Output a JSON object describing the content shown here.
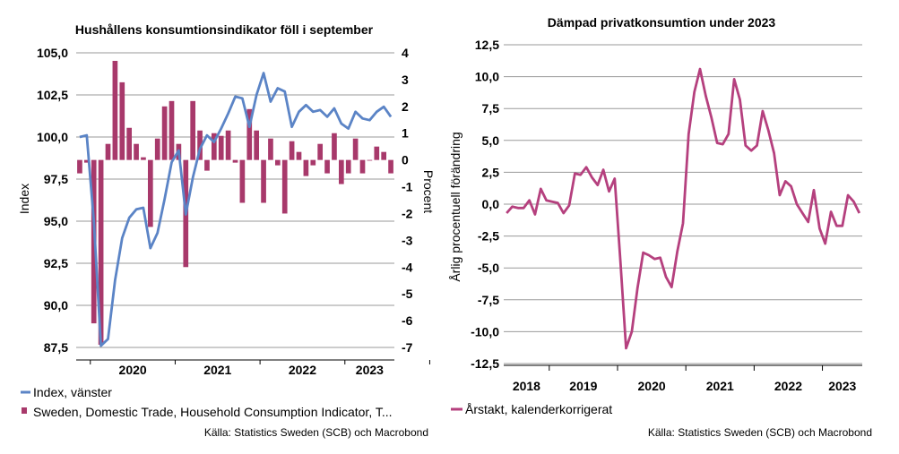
{
  "chart_data": [
    {
      "type": "bar+line",
      "title": "Hushållens konsumtionsindikator föll i september",
      "ylabel_left": "Index",
      "ylabel_right": "Procent",
      "left_ylim": [
        87.5,
        105.0
      ],
      "left_ticks": [
        "105,0",
        "102,5",
        "100,0",
        "97,5",
        "95,0",
        "92,5",
        "90,0",
        "87,5"
      ],
      "right_ylim": [
        -7,
        4
      ],
      "right_ticks": [
        "4",
        "3",
        "2",
        "1",
        "0",
        "-1",
        "-2",
        "-3",
        "-4",
        "-5",
        "-6",
        "-7"
      ],
      "x_ticks": [
        "2020",
        "2021",
        "2022",
        "2023"
      ],
      "grid": true,
      "legend_position": "bottom",
      "colors": {
        "line": "#5b84c6",
        "bars": "#a8396b"
      },
      "series": [
        {
          "name": "Index, vänster",
          "kind": "line",
          "axis": "left",
          "values": [
            100.0,
            100.1,
            95.0,
            87.6,
            88.0,
            91.5,
            94.0,
            95.2,
            95.7,
            95.8,
            93.4,
            94.3,
            96.3,
            98.5,
            99.2,
            95.4,
            97.6,
            99.3,
            100.1,
            99.7,
            100.5,
            101.4,
            102.4,
            102.3,
            100.6,
            102.5,
            103.8,
            102.1,
            102.9,
            102.7,
            100.6,
            101.5,
            101.9,
            101.5,
            101.6,
            101.2,
            101.7,
            100.8,
            100.5,
            101.5,
            101.1,
            101.0,
            101.5,
            101.8,
            101.2
          ]
        },
        {
          "name": "Sweden, Domestic Trade, Household Consumption Indicator, T...",
          "kind": "bar",
          "axis": "right",
          "values": [
            -0.5,
            -0.1,
            -6.1,
            -6.9,
            0.6,
            3.7,
            2.9,
            1.2,
            0.6,
            0.1,
            -2.5,
            0.8,
            2.0,
            2.2,
            0.6,
            -4.0,
            2.2,
            1.1,
            -0.4,
            1.0,
            0.9,
            1.1,
            -0.1,
            -1.6,
            1.9,
            1.1,
            -1.6,
            0.8,
            -0.2,
            -2.0,
            0.7,
            0.3,
            -0.6,
            -0.2,
            0.6,
            -0.5,
            1.0,
            -0.9,
            -0.5,
            0.8,
            -0.5,
            0.0,
            0.5,
            0.3,
            -0.5
          ]
        }
      ]
    },
    {
      "type": "line",
      "title": "Dämpad privatkonsumtion under 2023",
      "ylabel": "Årlig procentuell förändring",
      "ylim": [
        -12.5,
        12.5
      ],
      "y_ticks": [
        "12,5",
        "10,0",
        "7,5",
        "5,0",
        "2,5",
        "0,0",
        "-2,5",
        "-5,0",
        "-7,5",
        "-10,0",
        "-12,5"
      ],
      "x_ticks": [
        "2018",
        "2019",
        "2020",
        "2021",
        "2022",
        "2023"
      ],
      "grid": true,
      "legend_position": "bottom",
      "colors": {
        "line": "#b5407e"
      },
      "series": [
        {
          "name": "Årstakt, kalenderkorrigerat",
          "values": [
            -0.7,
            -0.2,
            -0.3,
            -0.3,
            0.3,
            -0.8,
            1.2,
            0.3,
            0.2,
            0.1,
            -0.7,
            -0.1,
            2.4,
            2.3,
            2.9,
            2.1,
            1.5,
            2.7,
            1.0,
            2.0,
            -4.5,
            -11.3,
            -10.0,
            -6.6,
            -3.8,
            -4.0,
            -4.3,
            -4.2,
            -5.7,
            -6.5,
            -3.7,
            -1.5,
            5.5,
            8.8,
            10.6,
            8.5,
            6.8,
            4.8,
            4.7,
            5.5,
            9.8,
            8.2,
            4.6,
            4.2,
            4.6,
            7.3,
            5.8,
            4.0,
            0.7,
            1.8,
            1.4,
            0.0,
            -0.7,
            -1.4,
            1.1,
            -1.9,
            -3.1,
            -0.6,
            -1.7,
            -1.7,
            0.7,
            0.2,
            -0.7
          ]
        }
      ]
    }
  ],
  "source_left": "Källa: Statistics Sweden (SCB) och Macrobond",
  "source_right": "Källa: Statistics Sweden (SCB) och Macrobond"
}
